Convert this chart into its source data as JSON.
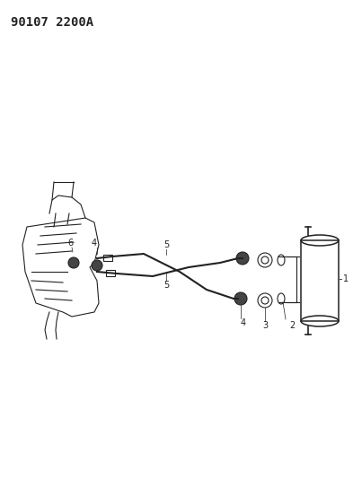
{
  "title": "90107 2200A",
  "bg_color": "#ffffff",
  "line_color": "#222222",
  "title_fontsize": 10,
  "fig_width": 3.93,
  "fig_height": 5.33,
  "dpi": 100
}
